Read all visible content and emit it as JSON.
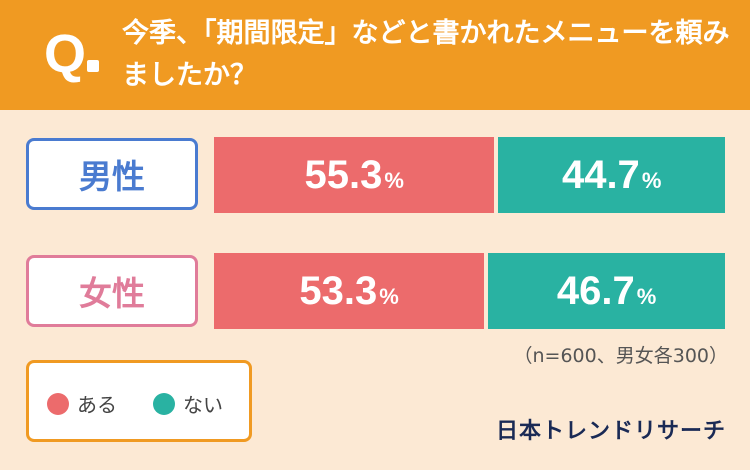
{
  "question": {
    "mark": "Q",
    "text": "今季、「期間限定」などと書かれたメニューを頼みましたか？"
  },
  "chart_data": {
    "type": "bar",
    "stacked": true,
    "orientation": "horizontal",
    "categories": [
      "男性",
      "女性"
    ],
    "series": [
      {
        "name": "ある",
        "values": [
          55.3,
          53.3
        ],
        "color": "#ec6b6c"
      },
      {
        "name": "ない",
        "values": [
          44.7,
          46.7
        ],
        "color": "#29b2a2"
      }
    ],
    "unit": "%",
    "xlim": [
      0,
      100
    ],
    "legend": "bottom-left",
    "grid": false
  },
  "labels": {
    "male": "男性",
    "female": "女性"
  },
  "note": "（n=600、男女各300）",
  "legend": {
    "yes": "ある",
    "no": "ない"
  },
  "brand": "日本トレンドリサーチ",
  "colors": {
    "header": "#f09a22",
    "background": "#fce9d4",
    "yes": "#ec6b6c",
    "no": "#29b2a2",
    "male": "#4a7bd0",
    "female": "#e07c9a"
  }
}
